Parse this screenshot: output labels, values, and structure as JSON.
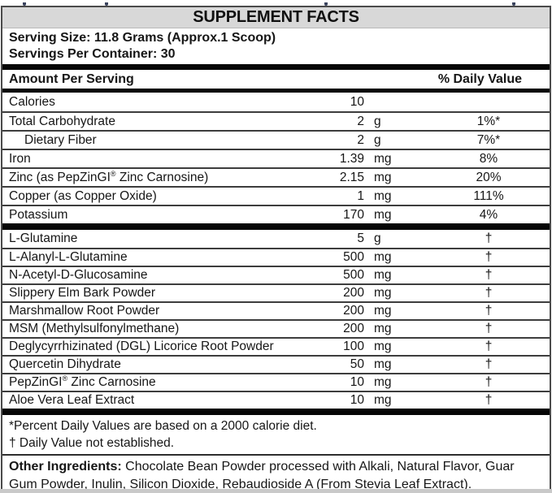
{
  "label": {
    "title": "SUPPLEMENT FACTS",
    "serving_size": "Serving Size: 11.8 Grams (Approx.1 Scoop)",
    "servings_per_container": "Servings Per Container: 30",
    "columns": {
      "amount_header": "Amount Per Serving",
      "dv_header": "% Daily Value"
    },
    "sections": [
      {
        "rows": [
          {
            "name": "Calories",
            "amount": "10",
            "unit": "",
            "dv": "",
            "indent": false
          },
          {
            "name": "Total Carbohydrate",
            "amount": "2",
            "unit": "g",
            "dv": "1%*",
            "indent": false
          },
          {
            "name": "Dietary Fiber",
            "amount": "2",
            "unit": "g",
            "dv": "7%*",
            "indent": true
          },
          {
            "name": "Iron",
            "amount": "1.39",
            "unit": "mg",
            "dv": "8%",
            "indent": false
          },
          {
            "name": "Zinc (as PepZinGI® Zinc Carnosine)",
            "amount": "2.15",
            "unit": "mg",
            "dv": "20%",
            "indent": false
          },
          {
            "name": "Copper (as Copper Oxide)",
            "amount": "1",
            "unit": "mg",
            "dv": "111%",
            "indent": false
          },
          {
            "name": "Potassium",
            "amount": "170",
            "unit": "mg",
            "dv": "4%",
            "indent": false
          }
        ]
      },
      {
        "rows": [
          {
            "name": "L-Glutamine",
            "amount": "5",
            "unit": "g",
            "dv": "†",
            "indent": false
          },
          {
            "name": "L-Alanyl-L-Glutamine",
            "amount": "500",
            "unit": "mg",
            "dv": "†",
            "indent": false
          },
          {
            "name": "N-Acetyl-D-Glucosamine",
            "amount": "500",
            "unit": "mg",
            "dv": "†",
            "indent": false
          },
          {
            "name": "Slippery Elm Bark Powder",
            "amount": "200",
            "unit": "mg",
            "dv": "†",
            "indent": false
          },
          {
            "name": "Marshmallow Root Powder",
            "amount": "200",
            "unit": "mg",
            "dv": "†",
            "indent": false
          },
          {
            "name": "MSM (Methylsulfonylmethane)",
            "amount": "200",
            "unit": "mg",
            "dv": "†",
            "indent": false
          },
          {
            "name": "Deglycyrrhizinated (DGL) Licorice Root Powder",
            "amount": "100",
            "unit": "mg",
            "dv": "†",
            "indent": false
          },
          {
            "name": "Quercetin Dihydrate",
            "amount": "50",
            "unit": "mg",
            "dv": "†",
            "indent": false
          },
          {
            "name": "PepZinGI® Zinc Carnosine",
            "amount": "10",
            "unit": "mg",
            "dv": "†",
            "indent": false
          },
          {
            "name": "Aloe Vera Leaf Extract",
            "amount": "10",
            "unit": "mg",
            "dv": "†",
            "indent": false
          }
        ]
      }
    ],
    "footnotes": [
      "*Percent Daily Values are based on a 2000 calorie diet.",
      "† Daily Value not established."
    ],
    "other_ingredients_label": "Other Ingredients:",
    "other_ingredients_text": " Chocolate Bean Powder processed with Alkali, Natural Flavor, Guar Gum Powder, Inulin, Silicon Dioxide, Rebaudioside A (From Stevia Leaf Extract)."
  },
  "colors": {
    "title_band": "#d8d8d8",
    "section_bar": "#060606",
    "row_divider": "#3d3d3d",
    "outer_border": "#4a4a4a",
    "text": "#161616"
  }
}
